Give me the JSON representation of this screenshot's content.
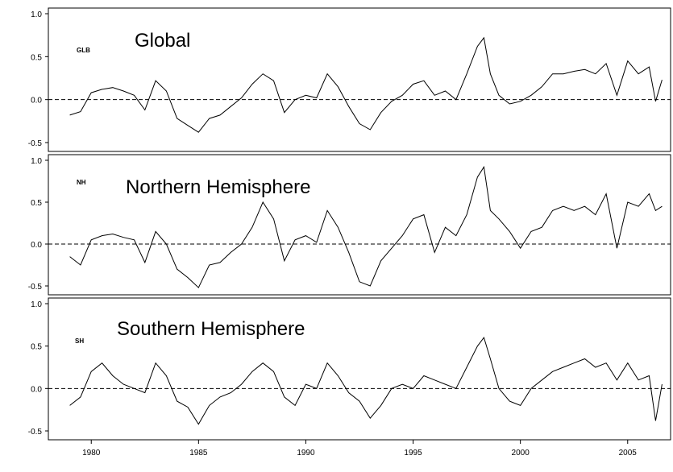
{
  "chart_data": [
    {
      "type": "line",
      "tag": "GLB",
      "title": "Global",
      "ylim": [
        -0.5,
        1.0
      ],
      "yticks": [
        "1.0",
        "0.5",
        "0.0",
        "-0.5"
      ],
      "yticks_values": [
        1.0,
        0.5,
        0.0,
        -0.5
      ],
      "reference_line": 0.0,
      "series": [
        {
          "x": [
            1979.0,
            1979.5,
            1980.0,
            1980.5,
            1981.0,
            1981.5,
            1982.0,
            1982.5,
            1983.0,
            1983.5,
            1984.0,
            1984.5,
            1985.0,
            1985.5,
            1986.0,
            1986.5,
            1987.0,
            1987.5,
            1988.0,
            1988.5,
            1989.0,
            1989.5,
            1990.0,
            1990.5,
            1991.0,
            1991.5,
            1992.0,
            1992.5,
            1993.0,
            1993.5,
            1994.0,
            1994.5,
            1995.0,
            1995.5,
            1996.0,
            1996.5,
            1997.0,
            1997.5,
            1998.0,
            1998.3,
            1998.6,
            1999.0,
            1999.5,
            2000.0,
            2000.5,
            2001.0,
            2001.5,
            2002.0,
            2002.5,
            2003.0,
            2003.5,
            2004.0,
            2004.5,
            2005.0,
            2005.5,
            2006.0,
            2006.3,
            2006.6
          ],
          "values": [
            -0.18,
            -0.14,
            0.08,
            0.12,
            0.14,
            0.1,
            0.05,
            -0.12,
            0.22,
            0.1,
            -0.22,
            -0.3,
            -0.38,
            -0.22,
            -0.18,
            -0.08,
            0.02,
            0.18,
            0.3,
            0.22,
            -0.15,
            0.0,
            0.05,
            0.02,
            0.3,
            0.15,
            -0.08,
            -0.28,
            -0.35,
            -0.15,
            -0.02,
            0.05,
            0.18,
            0.22,
            0.05,
            0.1,
            0.0,
            0.3,
            0.62,
            0.72,
            0.3,
            0.05,
            -0.05,
            -0.02,
            0.05,
            0.15,
            0.3,
            0.3,
            0.33,
            0.35,
            0.3,
            0.42,
            0.05,
            0.45,
            0.3,
            0.38,
            -0.02,
            0.23
          ]
        }
      ]
    },
    {
      "type": "line",
      "tag": "NH",
      "title": "Northern Hemisphere",
      "ylim": [
        -0.5,
        1.0
      ],
      "yticks": [
        "1.0",
        "0.5",
        "0.0",
        "-0.5"
      ],
      "yticks_values": [
        1.0,
        0.5,
        0.0,
        -0.5
      ],
      "reference_line": 0.0,
      "series": [
        {
          "x": [
            1979.0,
            1979.5,
            1980.0,
            1980.5,
            1981.0,
            1981.5,
            1982.0,
            1982.5,
            1983.0,
            1983.5,
            1984.0,
            1984.5,
            1985.0,
            1985.5,
            1986.0,
            1986.5,
            1987.0,
            1987.5,
            1988.0,
            1988.5,
            1989.0,
            1989.5,
            1990.0,
            1990.5,
            1991.0,
            1991.5,
            1992.0,
            1992.5,
            1993.0,
            1993.5,
            1994.0,
            1994.5,
            1995.0,
            1995.5,
            1996.0,
            1996.5,
            1997.0,
            1997.5,
            1998.0,
            1998.3,
            1998.6,
            1999.0,
            1999.5,
            2000.0,
            2000.5,
            2001.0,
            2001.5,
            2002.0,
            2002.5,
            2003.0,
            2003.5,
            2004.0,
            2004.5,
            2005.0,
            2005.5,
            2006.0,
            2006.3,
            2006.6
          ],
          "values": [
            -0.15,
            -0.25,
            0.05,
            0.1,
            0.12,
            0.08,
            0.05,
            -0.22,
            0.15,
            0.0,
            -0.3,
            -0.4,
            -0.52,
            -0.25,
            -0.22,
            -0.1,
            0.0,
            0.2,
            0.5,
            0.3,
            -0.2,
            0.05,
            0.1,
            0.02,
            0.4,
            0.2,
            -0.1,
            -0.45,
            -0.5,
            -0.2,
            -0.05,
            0.1,
            0.3,
            0.35,
            -0.1,
            0.2,
            0.1,
            0.35,
            0.8,
            0.92,
            0.4,
            0.3,
            0.15,
            -0.05,
            0.15,
            0.2,
            0.4,
            0.45,
            0.4,
            0.45,
            0.35,
            0.6,
            -0.05,
            0.5,
            0.45,
            0.6,
            0.4,
            0.45
          ]
        }
      ]
    },
    {
      "type": "line",
      "tag": "SH",
      "title": "Southern Hemisphere",
      "ylim": [
        -0.5,
        1.0
      ],
      "yticks": [
        "1.0",
        "0.5",
        "0.0",
        "-0.5"
      ],
      "yticks_values": [
        1.0,
        0.5,
        0.0,
        -0.5
      ],
      "reference_line": 0.0,
      "xticks": [
        "1980",
        "1985",
        "1990",
        "1995",
        "2000",
        "2005"
      ],
      "xticks_values": [
        1980,
        1985,
        1990,
        1995,
        2000,
        2005
      ],
      "xlim": [
        1978.0,
        2007.0
      ],
      "series": [
        {
          "x": [
            1979.0,
            1979.5,
            1980.0,
            1980.5,
            1981.0,
            1981.5,
            1982.0,
            1982.5,
            1983.0,
            1983.5,
            1984.0,
            1984.5,
            1985.0,
            1985.5,
            1986.0,
            1986.5,
            1987.0,
            1987.5,
            1988.0,
            1988.5,
            1989.0,
            1989.5,
            1990.0,
            1990.5,
            1991.0,
            1991.5,
            1992.0,
            1992.5,
            1993.0,
            1993.5,
            1994.0,
            1994.5,
            1995.0,
            1995.5,
            1996.0,
            1996.5,
            1997.0,
            1997.5,
            1998.0,
            1998.3,
            1998.6,
            1999.0,
            1999.5,
            2000.0,
            2000.5,
            2001.0,
            2001.5,
            2002.0,
            2002.5,
            2003.0,
            2003.5,
            2004.0,
            2004.5,
            2005.0,
            2005.5,
            2006.0,
            2006.3,
            2006.6
          ],
          "values": [
            -0.2,
            -0.1,
            0.2,
            0.3,
            0.15,
            0.05,
            0.0,
            -0.05,
            0.3,
            0.15,
            -0.15,
            -0.22,
            -0.42,
            -0.2,
            -0.1,
            -0.05,
            0.05,
            0.2,
            0.3,
            0.2,
            -0.1,
            -0.2,
            0.05,
            0.0,
            0.3,
            0.15,
            -0.05,
            -0.15,
            -0.35,
            -0.2,
            0.0,
            0.05,
            0.0,
            0.15,
            0.1,
            0.05,
            0.0,
            0.25,
            0.5,
            0.6,
            0.35,
            0.0,
            -0.15,
            -0.2,
            0.0,
            0.1,
            0.2,
            0.25,
            0.3,
            0.35,
            0.25,
            0.3,
            0.1,
            0.3,
            0.1,
            0.15,
            -0.38,
            0.05
          ]
        }
      ]
    }
  ]
}
